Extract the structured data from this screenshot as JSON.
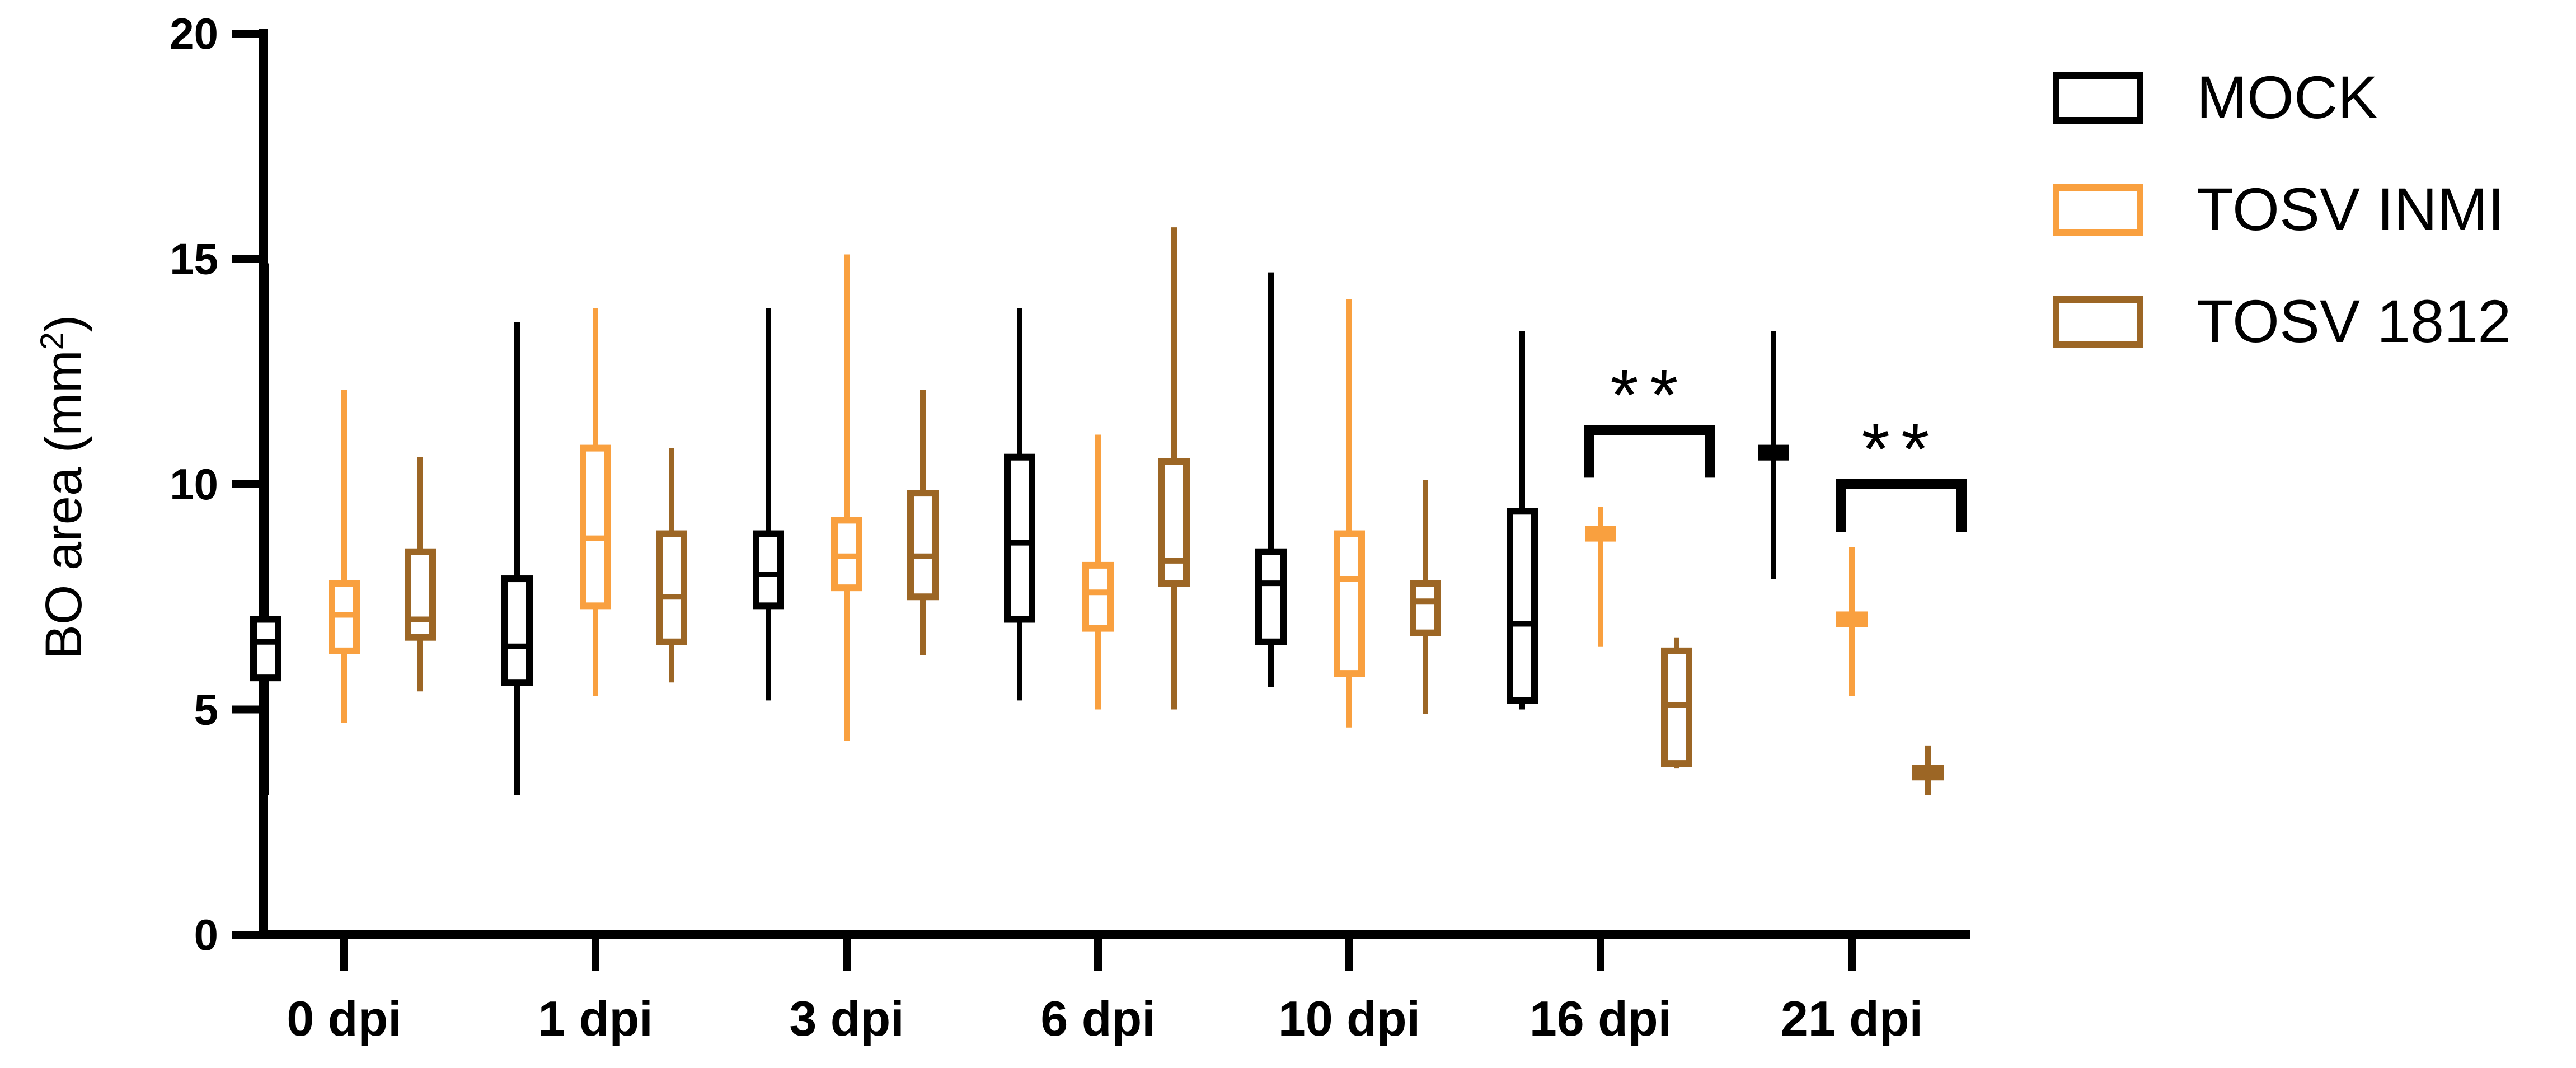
{
  "chart_data": {
    "type": "box",
    "title": "",
    "xlabel": "",
    "ylabel_main": "BO area (mm",
    "ylabel_sup": "2",
    "ylabel_end": ")",
    "ylim": [
      0,
      20
    ],
    "yticks": [
      "0",
      "5",
      "10",
      "15",
      "20"
    ],
    "categories": [
      "0 dpi",
      "1 dpi",
      "3 dpi",
      "6 dpi",
      "10 dpi",
      "16 dpi",
      "21 dpi"
    ],
    "legend_position": "right",
    "series": [
      {
        "name": "MOCK",
        "color": "#000000",
        "boxes": [
          {
            "min": 3.1,
            "q1": 5.7,
            "median": 6.5,
            "q3": 7.0,
            "max": 14.9
          },
          {
            "min": 3.1,
            "q1": 5.6,
            "median": 6.4,
            "q3": 7.9,
            "max": 13.6
          },
          {
            "min": 5.2,
            "q1": 7.3,
            "median": 8.0,
            "q3": 8.9,
            "max": 13.9
          },
          {
            "min": 5.2,
            "q1": 7.0,
            "median": 8.7,
            "q3": 10.6,
            "max": 13.9
          },
          {
            "min": 5.5,
            "q1": 6.5,
            "median": 7.8,
            "q3": 8.5,
            "max": 14.7
          },
          {
            "min": 5.0,
            "q1": 5.2,
            "median": 6.9,
            "q3": 9.4,
            "max": 13.4
          },
          {
            "min": 7.9,
            "q1": 10.6,
            "median": 10.7,
            "q3": 10.8,
            "max": 13.4
          }
        ]
      },
      {
        "name": "TOSV INMI",
        "color": "#F9A03F",
        "boxes": [
          {
            "min": 4.7,
            "q1": 6.3,
            "median": 7.1,
            "q3": 7.8,
            "max": 12.1
          },
          {
            "min": 5.3,
            "q1": 7.3,
            "median": 8.8,
            "q3": 10.8,
            "max": 13.9
          },
          {
            "min": 4.3,
            "q1": 7.7,
            "median": 8.4,
            "q3": 9.2,
            "max": 15.1
          },
          {
            "min": 5.0,
            "q1": 6.8,
            "median": 7.6,
            "q3": 8.2,
            "max": 11.1
          },
          {
            "min": 4.6,
            "q1": 5.8,
            "median": 7.9,
            "q3": 8.9,
            "max": 14.1
          },
          {
            "min": 6.4,
            "q1": 8.8,
            "median": 8.9,
            "q3": 9.0,
            "max": 9.5
          },
          {
            "min": 5.3,
            "q1": 6.9,
            "median": 7.0,
            "q3": 7.1,
            "max": 8.6
          }
        ]
      },
      {
        "name": "TOSV 1812",
        "color": "#9C6625",
        "boxes": [
          {
            "min": 5.4,
            "q1": 6.6,
            "median": 7.0,
            "q3": 8.5,
            "max": 10.6
          },
          {
            "min": 5.6,
            "q1": 6.5,
            "median": 7.5,
            "q3": 8.9,
            "max": 10.8
          },
          {
            "min": 6.2,
            "q1": 7.5,
            "median": 8.4,
            "q3": 9.8,
            "max": 12.1
          },
          {
            "min": 5.0,
            "q1": 7.8,
            "median": 8.3,
            "q3": 10.5,
            "max": 15.7
          },
          {
            "min": 4.9,
            "q1": 6.7,
            "median": 7.4,
            "q3": 7.8,
            "max": 10.1
          },
          {
            "min": 3.7,
            "q1": 3.8,
            "median": 5.1,
            "q3": 6.3,
            "max": 6.6
          },
          {
            "min": 3.1,
            "q1": 3.5,
            "median": 3.6,
            "q3": 3.7,
            "max": 4.2
          }
        ]
      }
    ],
    "significance": [
      {
        "category_index": 5,
        "label": "**",
        "level": 11.2
      },
      {
        "category_index": 6,
        "label": "**",
        "level": 10.0
      }
    ]
  }
}
